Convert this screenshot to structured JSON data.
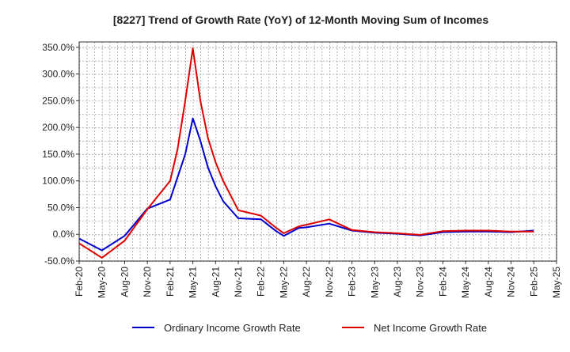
{
  "chart_data": {
    "type": "line",
    "title": "[8227]  Trend of Growth Rate (YoY) of 12-Month Moving Sum of Incomes",
    "x_tick_labels": [
      "Feb-20",
      "May-20",
      "Aug-20",
      "Nov-20",
      "Feb-21",
      "May-21",
      "Aug-21",
      "Nov-21",
      "Feb-22",
      "May-22",
      "Aug-22",
      "Nov-22",
      "Feb-23",
      "May-23",
      "Aug-23",
      "Nov-23",
      "Feb-24",
      "May-24",
      "Aug-24",
      "Nov-24",
      "Feb-25",
      "May-25"
    ],
    "y_tick_labels": [
      "-50.0%",
      "0.0%",
      "50.0%",
      "100.0%",
      "150.0%",
      "200.0%",
      "250.0%",
      "300.0%",
      "350.0%"
    ],
    "y_ticks": [
      -50,
      0,
      50,
      100,
      150,
      200,
      250,
      300,
      350
    ],
    "ylim": [
      -50,
      360
    ],
    "x_range": [
      0,
      63
    ],
    "grid": true,
    "legend_position": "bottom",
    "series": [
      {
        "name": "Ordinary Income Growth Rate",
        "color": "#0000cc",
        "x": [
          0,
          3,
          6,
          9,
          12,
          14,
          15,
          16,
          17,
          18,
          19,
          21,
          24,
          26,
          27,
          29,
          30,
          33,
          36,
          39,
          42,
          45,
          48,
          51,
          54,
          57,
          60
        ],
        "values": [
          -8,
          -30,
          -3,
          48,
          65,
          150,
          217,
          175,
          125,
          90,
          62,
          30,
          28,
          6,
          -3,
          12,
          13,
          20,
          7,
          3,
          1,
          -2,
          4,
          5,
          5,
          4,
          7
        ]
      },
      {
        "name": "Net Income Growth Rate",
        "color": "#dd0000",
        "x": [
          0,
          3,
          6,
          9,
          12,
          13,
          14,
          15,
          16,
          17,
          18,
          19,
          21,
          24,
          26,
          27,
          29,
          30,
          33,
          36,
          39,
          42,
          45,
          48,
          51,
          54,
          57,
          60
        ],
        "values": [
          -17,
          -44,
          -12,
          47,
          100,
          160,
          250,
          348,
          250,
          180,
          135,
          100,
          45,
          35,
          12,
          2,
          15,
          18,
          28,
          8,
          4,
          2,
          -1,
          6,
          7,
          7,
          5,
          5
        ]
      }
    ]
  }
}
